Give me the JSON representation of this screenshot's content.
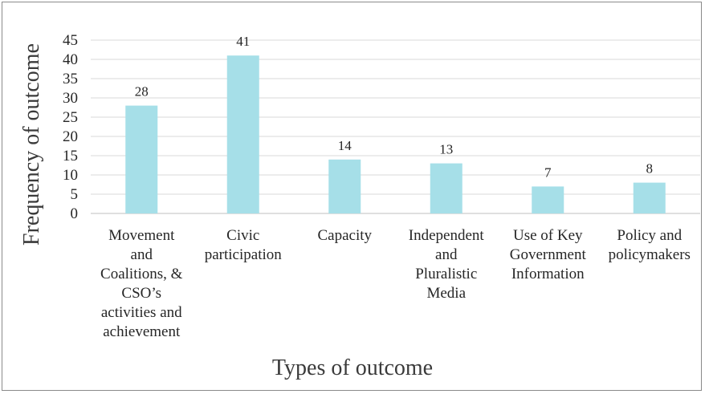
{
  "chart_data": {
    "type": "bar",
    "categories": [
      "Movement\nand\nCoalitions, &\nCSO’s\nactivities and\nachievement",
      "Civic\nparticipation",
      "Capacity",
      "Independent\nand\nPluralistic\nMedia",
      "Use of Key\nGovernment\nInformation",
      "Policy and\npolicymakers"
    ],
    "values": [
      28,
      41,
      14,
      13,
      7,
      8
    ],
    "xlabel": "Types of outcome",
    "ylabel": "Frequency of outcome",
    "ylim": [
      0,
      45
    ],
    "yticks": [
      0,
      5,
      10,
      15,
      20,
      25,
      30,
      35,
      40,
      45
    ],
    "grid": true,
    "legend": "none",
    "bar_color": "#a6dfe8",
    "gridline_color": "#d9d9d9"
  }
}
